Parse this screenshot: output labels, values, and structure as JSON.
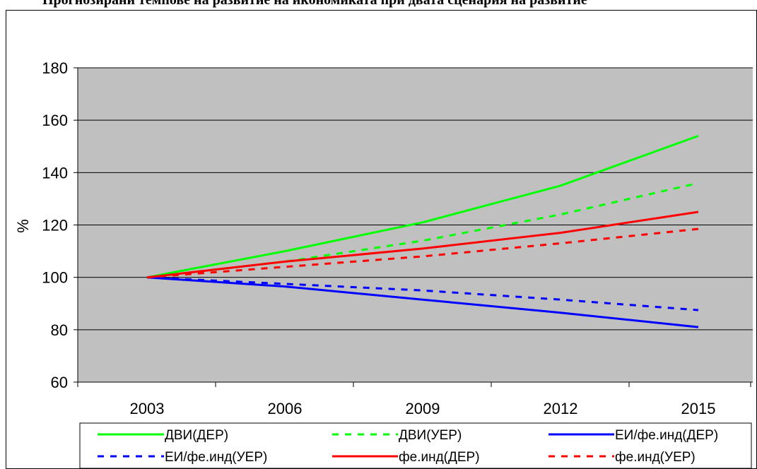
{
  "chart_data": {
    "type": "line",
    "title": "",
    "xlabel": "",
    "ylabel": "%",
    "x": [
      2003,
      2006,
      2009,
      2012,
      2015
    ],
    "x_tick_labels": [
      "2003",
      "2006",
      "2009",
      "2012",
      "2015"
    ],
    "ylim": [
      60,
      180
    ],
    "y_ticks": [
      60,
      80,
      100,
      120,
      140,
      160,
      180
    ],
    "y_tick_labels": [
      "60",
      "80",
      "100",
      "120",
      "140",
      "160",
      "180"
    ],
    "grid": true,
    "legend_position": "bottom",
    "plot_background": "#c0c0c0",
    "series": [
      {
        "name": "ДВИ(ДЕР)",
        "color": "#00ff00",
        "dashed": false,
        "values": [
          100,
          110,
          121,
          135,
          154
        ]
      },
      {
        "name": "ДВИ(УЕР)",
        "color": "#00ff00",
        "dashed": true,
        "values": [
          100,
          106,
          114,
          124,
          136
        ]
      },
      {
        "name": "ЕИ/фе.инд(ДЕР)",
        "color": "#0000ff",
        "dashed": false,
        "values": [
          100,
          96.5,
          91.5,
          86.5,
          81
        ]
      },
      {
        "name": "ЕИ/фе.инд(УЕР)",
        "color": "#0000ff",
        "dashed": true,
        "values": [
          100,
          97.5,
          95,
          91.5,
          87.5
        ]
      },
      {
        "name": "фе.инд(ДЕР)",
        "color": "#ff0000",
        "dashed": false,
        "values": [
          100,
          106,
          111,
          117,
          125
        ]
      },
      {
        "name": "фе.инд(УЕР)",
        "color": "#ff0000",
        "dashed": true,
        "values": [
          100,
          104,
          108,
          113,
          118.5
        ]
      }
    ]
  },
  "header_fragment": "Прогнозирани темпове на развитие на икономиката при двата сценария на развитие"
}
